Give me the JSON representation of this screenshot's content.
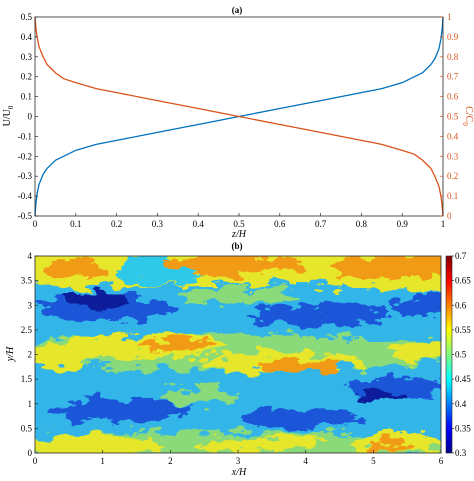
{
  "chart_data": [
    {
      "type": "line",
      "title": "(a)",
      "xlabel": "z/H",
      "ylabel_left": "U/U",
      "ylabel_left_sub": "0",
      "ylabel_right": "C/C",
      "ylabel_right_sub": "0",
      "xlim": [
        0,
        1
      ],
      "ylim_left": [
        -0.5,
        0.5
      ],
      "ylim_right": [
        0,
        1
      ],
      "x_ticks": [
        "0",
        "0.1",
        "0.2",
        "0.3",
        "0.4",
        "0.5",
        "0.6",
        "0.7",
        "0.8",
        "0.9",
        "1"
      ],
      "y_left_ticks": [
        "-0.5",
        "-0.4",
        "-0.3",
        "-0.2",
        "-0.1",
        "0",
        "0.1",
        "0.2",
        "0.3",
        "0.4",
        "0.5"
      ],
      "y_right_ticks": [
        "0",
        "0.1",
        "0.2",
        "0.3",
        "0.4",
        "0.5",
        "0.6",
        "0.7",
        "0.8",
        "0.9",
        "1"
      ],
      "grid": false,
      "series": [
        {
          "axis": "left",
          "color": "#0072BD",
          "x": [
            0,
            0.002,
            0.005,
            0.01,
            0.02,
            0.03,
            0.05,
            0.07,
            0.1,
            0.15,
            0.2,
            0.3,
            0.4,
            0.5,
            0.6,
            0.7,
            0.8,
            0.85,
            0.9,
            0.93,
            0.95,
            0.97,
            0.98,
            0.99,
            0.995,
            0.998,
            1
          ],
          "y": [
            -0.5,
            -0.44,
            -0.39,
            -0.34,
            -0.29,
            -0.26,
            -0.22,
            -0.2,
            -0.17,
            -0.14,
            -0.12,
            -0.08,
            -0.04,
            0,
            0.04,
            0.08,
            0.12,
            0.14,
            0.17,
            0.2,
            0.22,
            0.26,
            0.29,
            0.34,
            0.39,
            0.44,
            0.5
          ]
        },
        {
          "axis": "right",
          "color": "#D95319",
          "x": [
            0,
            0.002,
            0.005,
            0.01,
            0.02,
            0.03,
            0.05,
            0.07,
            0.1,
            0.15,
            0.2,
            0.3,
            0.4,
            0.5,
            0.6,
            0.7,
            0.8,
            0.85,
            0.9,
            0.93,
            0.95,
            0.97,
            0.98,
            0.99,
            0.995,
            0.998,
            1
          ],
          "y": [
            1.0,
            0.95,
            0.9,
            0.85,
            0.8,
            0.76,
            0.72,
            0.69,
            0.67,
            0.64,
            0.62,
            0.58,
            0.54,
            0.5,
            0.46,
            0.42,
            0.38,
            0.36,
            0.33,
            0.31,
            0.28,
            0.24,
            0.2,
            0.15,
            0.1,
            0.05,
            0.0
          ]
        }
      ]
    },
    {
      "type": "heatmap",
      "title": "(b)",
      "xlabel": "x/H",
      "ylabel": "y/H",
      "xlim": [
        0,
        6
      ],
      "ylim": [
        0,
        4
      ],
      "x_ticks": [
        "0",
        "1",
        "2",
        "3",
        "4",
        "5",
        "6"
      ],
      "y_ticks": [
        "0",
        "0.5",
        "1",
        "1.5",
        "2",
        "2.5",
        "3",
        "3.5",
        "4"
      ],
      "colorbar_range": [
        0.3,
        0.7
      ],
      "colorbar_ticks": [
        "0.3",
        "0.35",
        "0.4",
        "0.45",
        "0.5",
        "0.55",
        "0.6",
        "0.65",
        "0.7"
      ],
      "colormap": "jet",
      "grid": false
    }
  ]
}
